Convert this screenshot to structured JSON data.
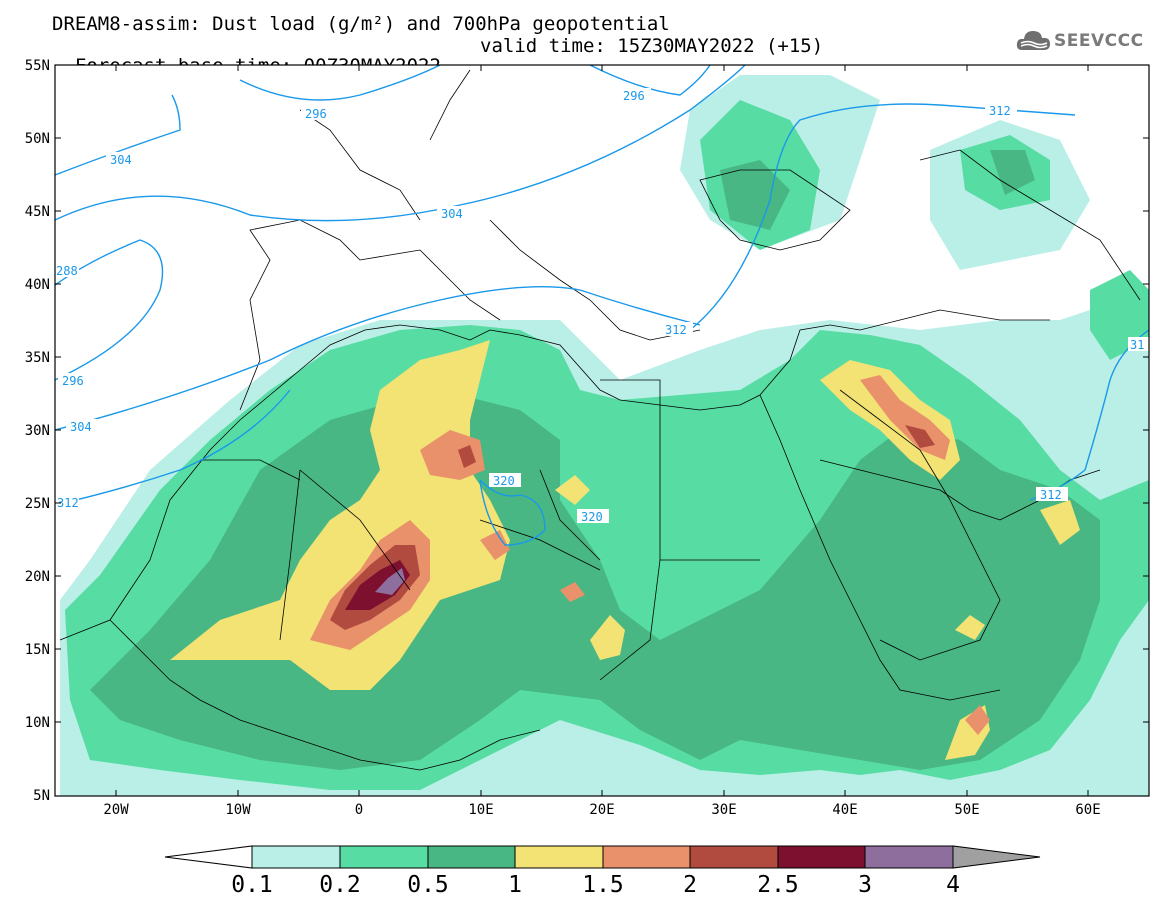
{
  "header": {
    "title_line1": "DREAM8-assim: Dust load (g/m²) and 700hPa geopotential",
    "title_line2_left": "Forecast base time: 00Z30MAY2022",
    "title_line2_right": "valid time: 15Z30MAY2022 (+15)",
    "logo_text": "SEEVCCC",
    "logo_icon": "cloud-icon"
  },
  "map": {
    "lat_labels": [
      "55N",
      "50N",
      "45N",
      "40N",
      "35N",
      "30N",
      "25N",
      "20N",
      "15N",
      "10N",
      "5N"
    ],
    "lon_labels": [
      "20W",
      "10W",
      "0",
      "10E",
      "20E",
      "30E",
      "40E",
      "50E",
      "60E"
    ],
    "contour_labels": [
      "296",
      "296",
      "304",
      "304",
      "312",
      "288",
      "296",
      "304",
      "312",
      "320",
      "320",
      "312",
      "312",
      "31"
    ],
    "contour_color": "#1a98ea"
  },
  "legend": {
    "labels": [
      "0.1",
      "0.2",
      "0.5",
      "1",
      "1.5",
      "2",
      "2.5",
      "3",
      "4"
    ],
    "colors": [
      "#b9efe6",
      "#57dca4",
      "#48b783",
      "#f3e274",
      "#e8916a",
      "#b14a3f",
      "#7d0f2f",
      "#8e6e9c",
      "#a0a0a0"
    ],
    "under_color": "#ffffff"
  }
}
